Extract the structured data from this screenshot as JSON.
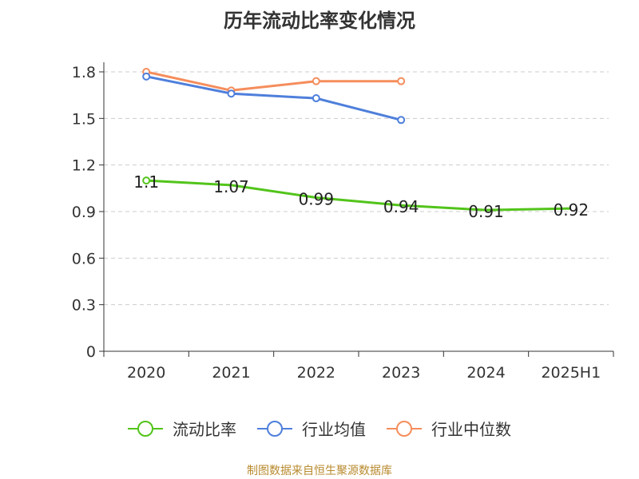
{
  "chart_data": {
    "type": "line",
    "title": "历年流动比率变化情况",
    "categories": [
      "2020",
      "2021",
      "2022",
      "2023",
      "2024",
      "2025H1"
    ],
    "yticks": [
      "0",
      "0.3",
      "0.6",
      "0.9",
      "1.2",
      "1.5",
      "1.8"
    ],
    "ylim": [
      0,
      1.8
    ],
    "grid": true,
    "legend_position": "bottom",
    "series": [
      {
        "name": "流动比率",
        "color": "#52c41a",
        "values": [
          1.1,
          1.07,
          0.99,
          0.94,
          0.91,
          0.92
        ],
        "labels": [
          "1.1",
          "1.07",
          "0.99",
          "0.94",
          "0.91",
          "0.92"
        ],
        "show_labels": true
      },
      {
        "name": "行业均值",
        "color": "#4e7fdb",
        "values": [
          1.77,
          1.66,
          1.63,
          1.49,
          null,
          null
        ],
        "show_labels": false
      },
      {
        "name": "行业中位数",
        "color": "#f58d5c",
        "values": [
          1.8,
          1.68,
          1.74,
          1.74,
          null,
          null
        ],
        "show_labels": false
      }
    ]
  },
  "footer": {
    "source": "制图数据来自恒生聚源数据库"
  }
}
